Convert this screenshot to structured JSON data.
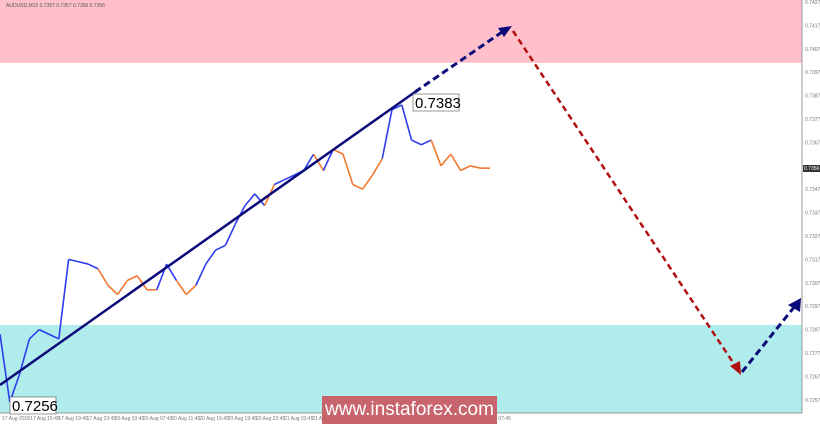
{
  "header": {
    "symbol": "AUDUSD,M15",
    "ohlc": "0.7357 0.7357 0.7356 0.7356"
  },
  "watermark": "www.instaforex.com",
  "colors": {
    "up": "#2f3cf0",
    "down": "#f07830",
    "resistance_zone": "#ffc0cb",
    "support_zone": "#b0ecec",
    "trend": "#0a0a78",
    "forecast_down": "#b01010"
  },
  "chart_data": {
    "type": "line",
    "ylim": [
      0.7251,
      0.7428
    ],
    "y_ticks": [
      "0.7427",
      "0.7417",
      "0.7407",
      "0.7397",
      "0.7387",
      "0.7377",
      "0.7367",
      "0.7347",
      "0.7337",
      "0.7327",
      "0.7317",
      "0.7307",
      "0.7297",
      "0.7287",
      "0.7277",
      "0.7267",
      "0.7257"
    ],
    "current_price": "0.7356",
    "x_ticks": [
      "17 Aug 2018",
      "17 Aug 15:45",
      "17 Aug 19:45",
      "17 Aug 23:45",
      "20 Aug 03:45",
      "20 Aug 07:45",
      "20 Aug 11:45",
      "20 Aug 15:45",
      "20 Aug 19:45",
      "20 Aug 23:45",
      "21 Aug 03:45",
      "21 Aug 07:45",
      "21 Aug 11:45",
      "21 Aug 15:45",
      "21 Aug 19:45",
      "21 Aug 23:45",
      "22 Aug 03:45",
      "22 Aug 07:45"
    ],
    "resistance_zone": [
      0.7401,
      0.7428
    ],
    "support_zone": [
      0.7251,
      0.7289
    ],
    "annotations": {
      "high": "0.7383",
      "low": "0.7256"
    },
    "series": [
      {
        "values": [
          0.7285,
          0.7256,
          0.7268,
          0.7283,
          0.7287,
          0.7285,
          0.7283,
          0.7317,
          0.7316,
          0.7315,
          0.7313,
          0.7306,
          0.7302,
          0.7308,
          0.731,
          0.7304,
          0.7304,
          0.7315,
          0.7308,
          0.7302,
          0.7306,
          0.7315,
          0.7321,
          0.7323,
          0.7332,
          0.734,
          0.7345,
          0.734,
          0.7349,
          0.7351,
          0.7353,
          0.7355,
          0.7362,
          0.7355,
          0.7364,
          0.7362,
          0.7349,
          0.7347,
          0.7353,
          0.736,
          0.7381,
          0.7383,
          0.7368,
          0.7366,
          0.7368,
          0.7357,
          0.7362,
          0.7355,
          0.7357,
          0.7356,
          0.7356
        ],
        "direction": [
          "b",
          "b",
          "b",
          "b",
          "b",
          "b",
          "b",
          "b",
          "b",
          "b",
          "b",
          "o",
          "o",
          "o",
          "o",
          "o",
          "o",
          "b",
          "b",
          "o",
          "o",
          "b",
          "b",
          "b",
          "b",
          "b",
          "b",
          "b",
          "o",
          "b",
          "b",
          "b",
          "b",
          "o",
          "b",
          "o",
          "o",
          "o",
          "o",
          "o",
          "b",
          "b",
          "b",
          "b",
          "b",
          "o",
          "o",
          "o",
          "o",
          "o",
          "o"
        ]
      }
    ]
  }
}
